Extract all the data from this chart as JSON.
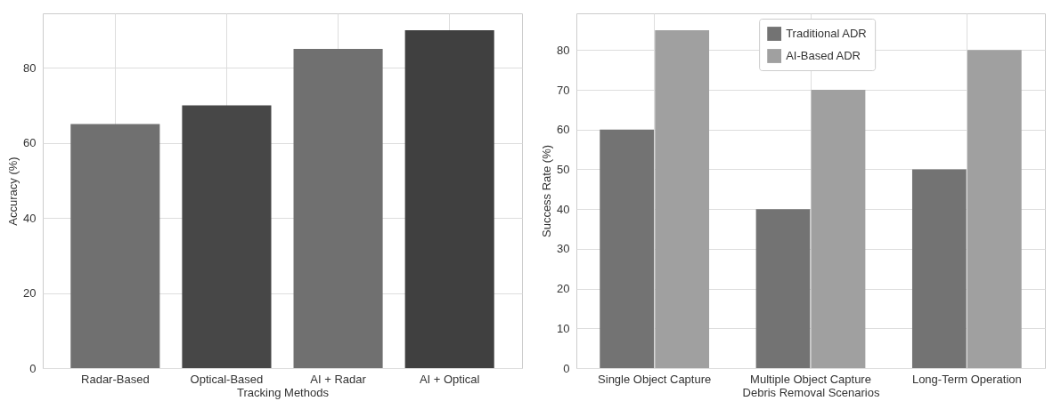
{
  "chart_data": [
    {
      "type": "bar",
      "xlabel": "Tracking Methods",
      "ylabel": "Accuracy (%)",
      "categories": [
        "Radar-Based",
        "Optical-Based",
        "AI + Radar",
        "AI + Optical"
      ],
      "values": [
        65,
        70,
        85,
        90
      ],
      "colors": [
        "#707070",
        "#474747",
        "#707070",
        "#404040"
      ],
      "ylim": [
        0,
        94.5
      ],
      "yticks": [
        0,
        20,
        40,
        60,
        80
      ],
      "grid": true
    },
    {
      "type": "bar",
      "xlabel": "Debris Removal Scenarios",
      "ylabel": "Success Rate (%)",
      "categories": [
        "Single Object Capture",
        "Multiple Object Capture",
        "Long-Term Operation"
      ],
      "series": [
        {
          "name": "Traditional ADR",
          "color": "#737373",
          "values": [
            60,
            40,
            50
          ]
        },
        {
          "name": "AI-Based ADR",
          "color": "#a0a0a0",
          "values": [
            85,
            70,
            80
          ]
        }
      ],
      "ylim": [
        0,
        89.25
      ],
      "yticks": [
        0,
        10,
        20,
        30,
        40,
        50,
        60,
        70,
        80
      ],
      "grid": true,
      "legend": "top"
    }
  ]
}
